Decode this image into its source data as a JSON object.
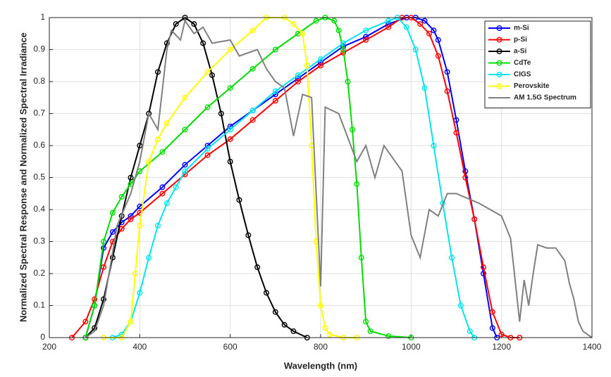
{
  "chart_data": {
    "type": "line",
    "xlabel": "Wavelength (nm)",
    "ylabel": "Normalized Spectral Response and Normalized Spectral Irradiance",
    "xlim": [
      200,
      1400
    ],
    "xticks": [
      200,
      400,
      600,
      800,
      1000,
      1200,
      1400
    ],
    "ylim": [
      0,
      1
    ],
    "yticks": [
      0,
      0.1,
      0.2,
      0.3,
      0.4,
      0.5,
      0.6,
      0.7,
      0.8,
      0.9,
      1
    ],
    "grid": true,
    "legend_corner": "upper right",
    "series": [
      {
        "name": "m-Si",
        "color": "#0000ff",
        "marker": "o",
        "x": [
          280,
          300,
          320,
          340,
          360,
          380,
          400,
          450,
          500,
          550,
          600,
          650,
          700,
          750,
          800,
          850,
          900,
          950,
          990,
          1010,
          1030,
          1050,
          1060,
          1080,
          1100,
          1120,
          1140,
          1160,
          1180,
          1190
        ],
        "values": [
          0,
          0.1,
          0.28,
          0.33,
          0.36,
          0.38,
          0.41,
          0.47,
          0.54,
          0.6,
          0.66,
          0.71,
          0.76,
          0.81,
          0.86,
          0.91,
          0.94,
          0.98,
          1,
          1,
          0.99,
          0.96,
          0.93,
          0.83,
          0.68,
          0.52,
          0.37,
          0.2,
          0.03,
          0
        ]
      },
      {
        "name": "p-Si",
        "color": "#ff0000",
        "marker": "o",
        "x": [
          250,
          280,
          300,
          320,
          340,
          360,
          380,
          400,
          450,
          500,
          550,
          600,
          650,
          700,
          750,
          800,
          850,
          900,
          950,
          980,
          1000,
          1020,
          1040,
          1060,
          1080,
          1100,
          1120,
          1140,
          1160,
          1180,
          1200,
          1220,
          1240
        ],
        "values": [
          0,
          0.05,
          0.12,
          0.22,
          0.3,
          0.34,
          0.37,
          0.39,
          0.45,
          0.51,
          0.57,
          0.62,
          0.68,
          0.74,
          0.8,
          0.85,
          0.89,
          0.93,
          0.97,
          1,
          1,
          0.98,
          0.95,
          0.88,
          0.77,
          0.64,
          0.5,
          0.37,
          0.22,
          0.08,
          0.01,
          0,
          0
        ]
      },
      {
        "name": "a-Si",
        "color": "#000000",
        "marker": "o",
        "x": [
          280,
          300,
          320,
          340,
          360,
          380,
          400,
          420,
          440,
          460,
          480,
          500,
          520,
          540,
          560,
          580,
          600,
          620,
          640,
          660,
          680,
          700,
          720,
          740,
          770
        ],
        "values": [
          0,
          0.03,
          0.12,
          0.25,
          0.38,
          0.5,
          0.6,
          0.7,
          0.83,
          0.92,
          0.98,
          1,
          0.98,
          0.92,
          0.82,
          0.7,
          0.55,
          0.43,
          0.32,
          0.22,
          0.14,
          0.08,
          0.04,
          0.02,
          0
        ]
      },
      {
        "name": "CdTe",
        "color": "#00dd00",
        "marker": "o",
        "x": [
          280,
          300,
          320,
          340,
          360,
          380,
          400,
          450,
          500,
          550,
          600,
          650,
          700,
          750,
          790,
          810,
          830,
          840,
          850,
          860,
          870,
          880,
          890,
          900,
          910,
          950,
          1000
        ],
        "values": [
          0,
          0.1,
          0.3,
          0.39,
          0.44,
          0.48,
          0.52,
          0.58,
          0.65,
          0.72,
          0.78,
          0.84,
          0.9,
          0.95,
          0.99,
          1,
          0.99,
          0.96,
          0.9,
          0.8,
          0.65,
          0.48,
          0.25,
          0.05,
          0.02,
          0.005,
          0
        ]
      },
      {
        "name": "CIGS",
        "color": "#00e5ee",
        "marker": "o",
        "x": [
          340,
          360,
          380,
          400,
          420,
          440,
          460,
          480,
          500,
          550,
          600,
          650,
          700,
          750,
          800,
          850,
          900,
          950,
          970,
          990,
          1010,
          1030,
          1050,
          1070,
          1090,
          1110,
          1130,
          1140
        ],
        "values": [
          0,
          0.01,
          0.05,
          0.14,
          0.25,
          0.35,
          0.42,
          0.47,
          0.52,
          0.59,
          0.65,
          0.71,
          0.77,
          0.82,
          0.87,
          0.92,
          0.96,
          0.99,
          1,
          0.97,
          0.9,
          0.78,
          0.6,
          0.42,
          0.25,
          0.1,
          0.02,
          0
        ]
      },
      {
        "name": "Perovskite",
        "color": "#ffff00",
        "marker": "o",
        "x": [
          320,
          360,
          380,
          390,
          400,
          420,
          440,
          460,
          500,
          550,
          600,
          650,
          680,
          720,
          740,
          760,
          770,
          780,
          790,
          800,
          810,
          820,
          850,
          880
        ],
        "values": [
          0,
          0,
          0.05,
          0.2,
          0.35,
          0.55,
          0.62,
          0.67,
          0.75,
          0.83,
          0.9,
          0.96,
          1,
          1,
          0.98,
          0.95,
          0.85,
          0.6,
          0.3,
          0.1,
          0.03,
          0.01,
          0,
          0
        ]
      },
      {
        "name": "AM 1.5G Spectrum",
        "color": "#808080",
        "marker": "none",
        "x": [
          280,
          300,
          320,
          350,
          380,
          400,
          420,
          440,
          460,
          470,
          490,
          500,
          520,
          540,
          560,
          600,
          620,
          660,
          680,
          700,
          720,
          740,
          760,
          780,
          800,
          810,
          840,
          880,
          900,
          920,
          940,
          980,
          1000,
          1020,
          1040,
          1060,
          1080,
          1100,
          1150,
          1200,
          1220,
          1240,
          1250,
          1260,
          1270,
          1280,
          1300,
          1320,
          1340,
          1350,
          1360,
          1370,
          1380,
          1400
        ],
        "values": [
          0,
          0.02,
          0.1,
          0.35,
          0.45,
          0.55,
          0.7,
          0.65,
          0.9,
          0.96,
          0.93,
          0.99,
          0.95,
          0.97,
          0.92,
          0.93,
          0.88,
          0.9,
          0.84,
          0.8,
          0.78,
          0.63,
          0.76,
          0.75,
          0.16,
          0.72,
          0.7,
          0.55,
          0.6,
          0.5,
          0.6,
          0.52,
          0.32,
          0.25,
          0.4,
          0.38,
          0.45,
          0.45,
          0.42,
          0.38,
          0.31,
          0.05,
          0.18,
          0.1,
          0.2,
          0.29,
          0.28,
          0.28,
          0.24,
          0.17,
          0.12,
          0.05,
          0.02,
          0
        ]
      }
    ]
  }
}
